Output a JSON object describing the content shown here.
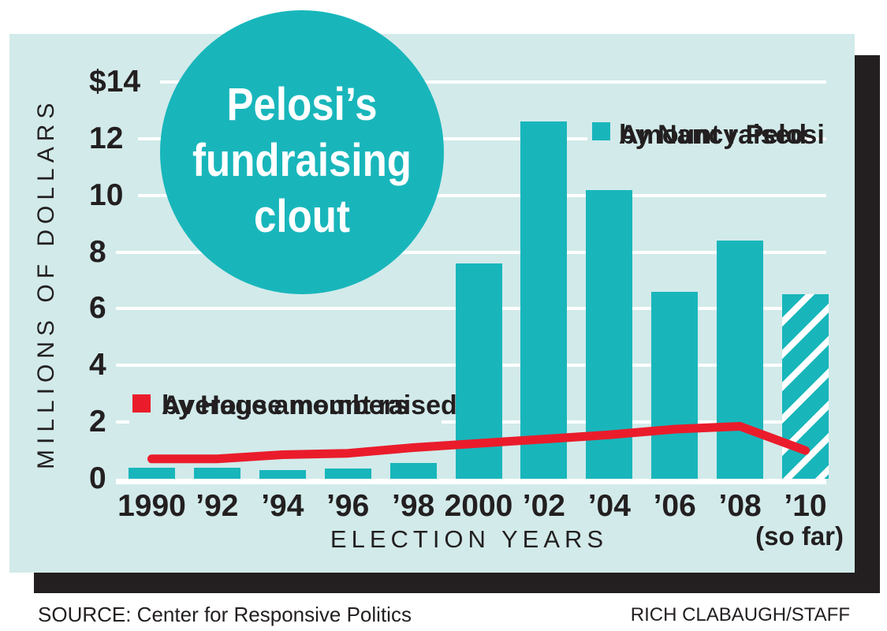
{
  "title": {
    "line1": "Pelosi’s",
    "line2": "fundraising",
    "line3": "clout"
  },
  "legend": {
    "pelosi": {
      "line1": "Amount raised",
      "line2": "by Nancy Pelosi"
    },
    "house": {
      "line1": "Average amount raised",
      "line2": "by House members"
    }
  },
  "footer": {
    "source": "SOURCE: Center for Responsive Politics",
    "credit": "RICH CLABAUGH/STAFF"
  },
  "colors": {
    "teal": "#18b6bb",
    "panel_bg": "#d2eaea",
    "red": "#ea1c2b",
    "text": "#231f20"
  },
  "chart_data": {
    "type": "bar",
    "title": "Pelosi’s fundraising clout",
    "categories": [
      "1990",
      "’92",
      "’94",
      "’96",
      "’98",
      "2000",
      "’02",
      "’04",
      "’06",
      "’08",
      "’10"
    ],
    "x_note": "(so far)",
    "series": [
      {
        "name": "Amount raised by Nancy Pelosi",
        "type": "bar",
        "values": [
          0.4,
          0.4,
          0.3,
          0.35,
          0.55,
          7.6,
          12.6,
          10.2,
          6.6,
          8.4,
          6.5
        ],
        "last_bar_hatched": true,
        "hatch_note": "2010 bar striped because cycle incomplete"
      },
      {
        "name": "Average amount raised by House members",
        "type": "line",
        "values": [
          0.7,
          0.7,
          0.85,
          0.9,
          1.1,
          1.25,
          1.4,
          1.55,
          1.75,
          1.85,
          1.0
        ]
      }
    ],
    "xlabel": "ELECTION YEARS",
    "ylabel": "MILLIONS OF DOLLARS",
    "yticks": [
      "$14",
      "12",
      "10",
      "8",
      "6",
      "4",
      "2",
      "0"
    ],
    "ytick_values": [
      14,
      12,
      10,
      8,
      6,
      4,
      2,
      0
    ],
    "ylim": [
      0,
      14
    ],
    "grid": true,
    "legend_position": "pelosi top-right, house mid-left"
  }
}
